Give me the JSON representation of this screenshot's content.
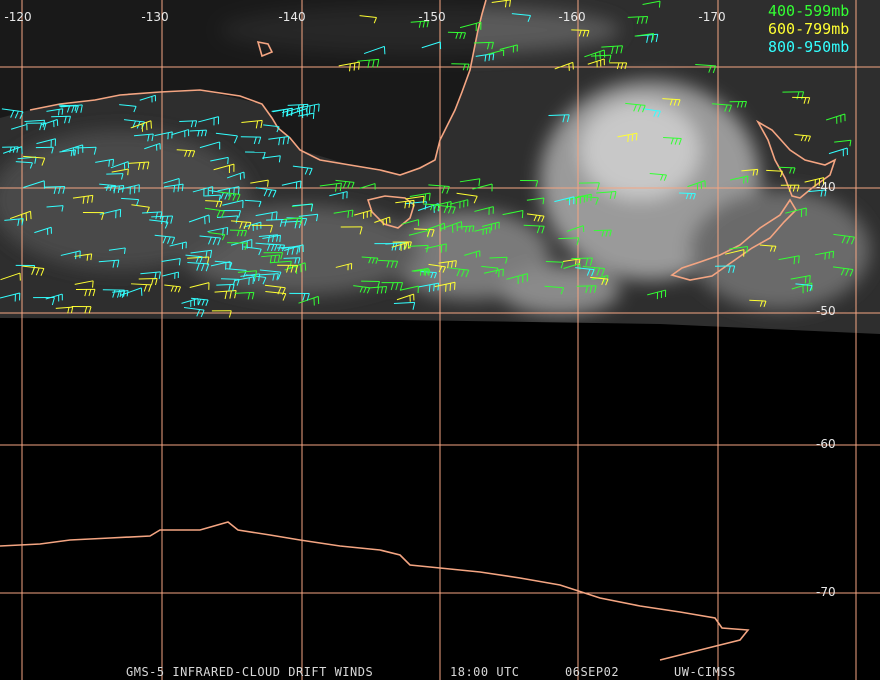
{
  "map": {
    "longitude_labels": [
      "-120",
      "-130",
      "-140",
      "-150",
      "-160",
      "-170"
    ],
    "latitude_labels": [
      "-40",
      "-50",
      "-60",
      "-70"
    ],
    "legend": [
      {
        "label": "400-599mb",
        "color": "#33ff33"
      },
      {
        "label": "600-799mb",
        "color": "#ffff33"
      },
      {
        "label": "800-950mb",
        "color": "#33ffff"
      }
    ],
    "footer": [
      "GMS-5 INFRARED-CLOUD DRIFT WINDS",
      "18:00 UTC",
      "06SEP02",
      "UW-CIMSS"
    ]
  }
}
